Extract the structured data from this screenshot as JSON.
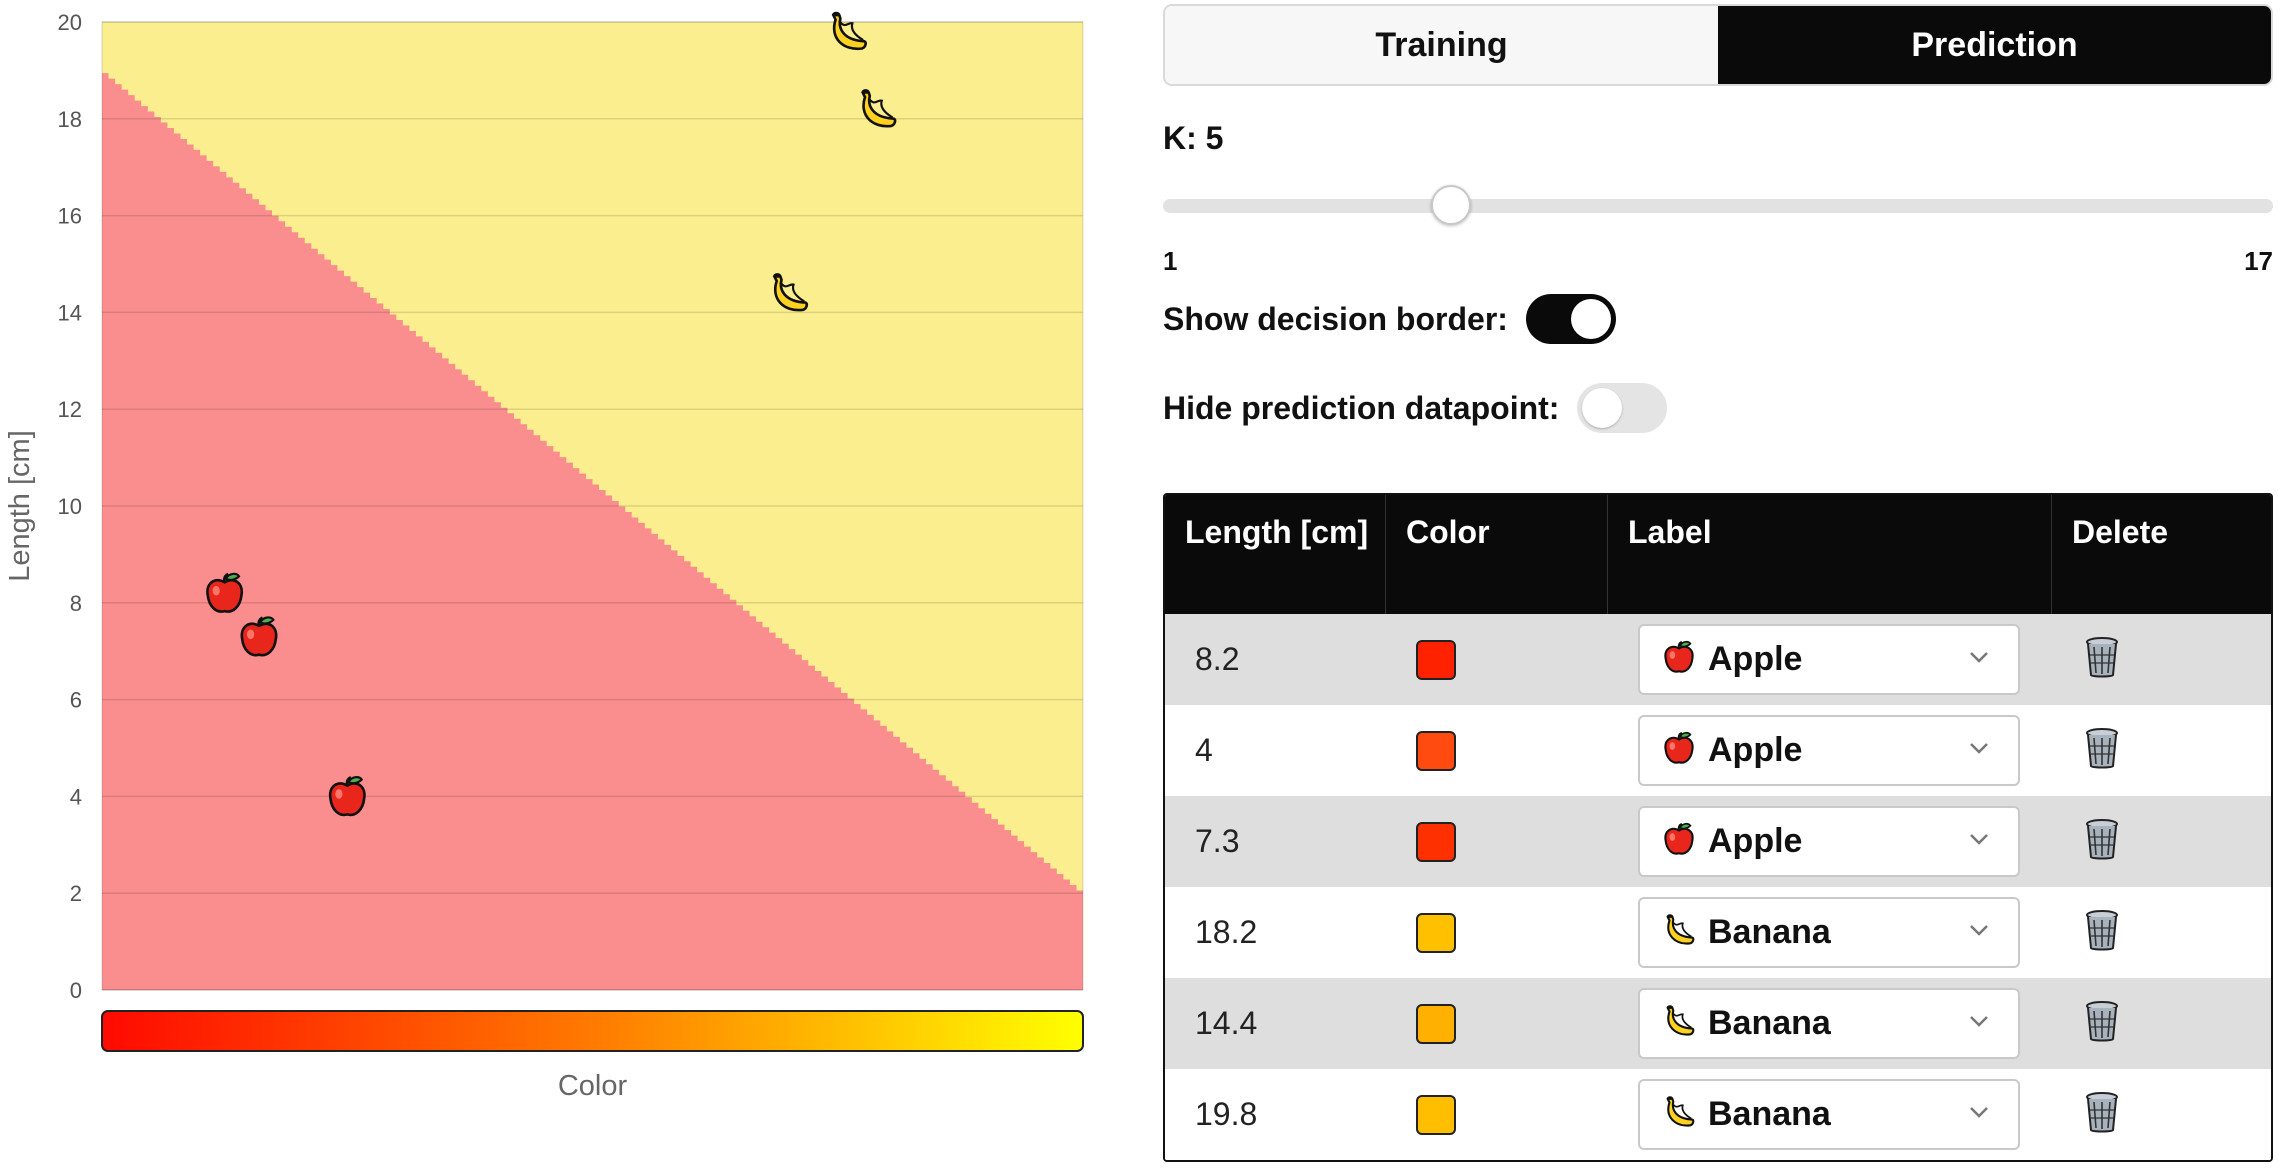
{
  "chart": {
    "ylabel": "Length   [cm]",
    "xlabel": "Color",
    "y_ticks": [
      "0",
      "2",
      "4",
      "6",
      "8",
      "10",
      "12",
      "14",
      "16",
      "18",
      "20"
    ],
    "colors": {
      "apple_region": "#fa8e8e",
      "banana_region": "#fbee8e",
      "gradient_start": "#ff0a00",
      "gradient_mid": "#ff7a00",
      "gradient_end": "#ffff00"
    },
    "region_icons": {
      "Apple": "apple-icon",
      "Banana": "banana-icon"
    }
  },
  "chart_data": {
    "type": "scatter",
    "xlabel": "Color",
    "ylabel": "Length   [cm]",
    "ylim": [
      0,
      20
    ],
    "xlim": [
      0,
      1
    ],
    "grid": true,
    "decision_border_y_at_x0": 19.0,
    "decision_border_y_at_x1": 2.0,
    "series": [
      {
        "name": "Apple",
        "points": [
          {
            "x": 0.125,
            "y": 8.2
          },
          {
            "x": 0.16,
            "y": 7.3
          },
          {
            "x": 0.25,
            "y": 4.0
          }
        ]
      },
      {
        "name": "Banana",
        "points": [
          {
            "x": 0.76,
            "y": 19.8
          },
          {
            "x": 0.79,
            "y": 18.2
          },
          {
            "x": 0.7,
            "y": 14.4
          }
        ]
      }
    ]
  },
  "tabs": {
    "training": "Training",
    "prediction": "Prediction",
    "active": "prediction"
  },
  "k": {
    "label": "K: 5",
    "value": 5,
    "min": 1,
    "max": 17,
    "min_label": "1",
    "max_label": "17"
  },
  "toggles": {
    "show_border_label": "Show decision border:",
    "show_border_on": true,
    "hide_prediction_label": "Hide prediction datapoint:",
    "hide_prediction_on": false
  },
  "table": {
    "headers": [
      "Length [cm]",
      "Color",
      "Label",
      "Delete"
    ],
    "rows": [
      {
        "length": "8.2",
        "color": "#ff2200",
        "label": "Apple",
        "icon": "apple-icon"
      },
      {
        "length": "4",
        "color": "#ff4a10",
        "label": "Apple",
        "icon": "apple-icon"
      },
      {
        "length": "7.3",
        "color": "#ff3000",
        "label": "Apple",
        "icon": "apple-icon"
      },
      {
        "length": "18.2",
        "color": "#ffc000",
        "label": "Banana",
        "icon": "banana-icon"
      },
      {
        "length": "14.4",
        "color": "#ffb000",
        "label": "Banana",
        "icon": "banana-icon"
      },
      {
        "length": "19.8",
        "color": "#ffbf00",
        "label": "Banana",
        "icon": "banana-icon"
      }
    ],
    "delete_icon": "trash-icon"
  }
}
